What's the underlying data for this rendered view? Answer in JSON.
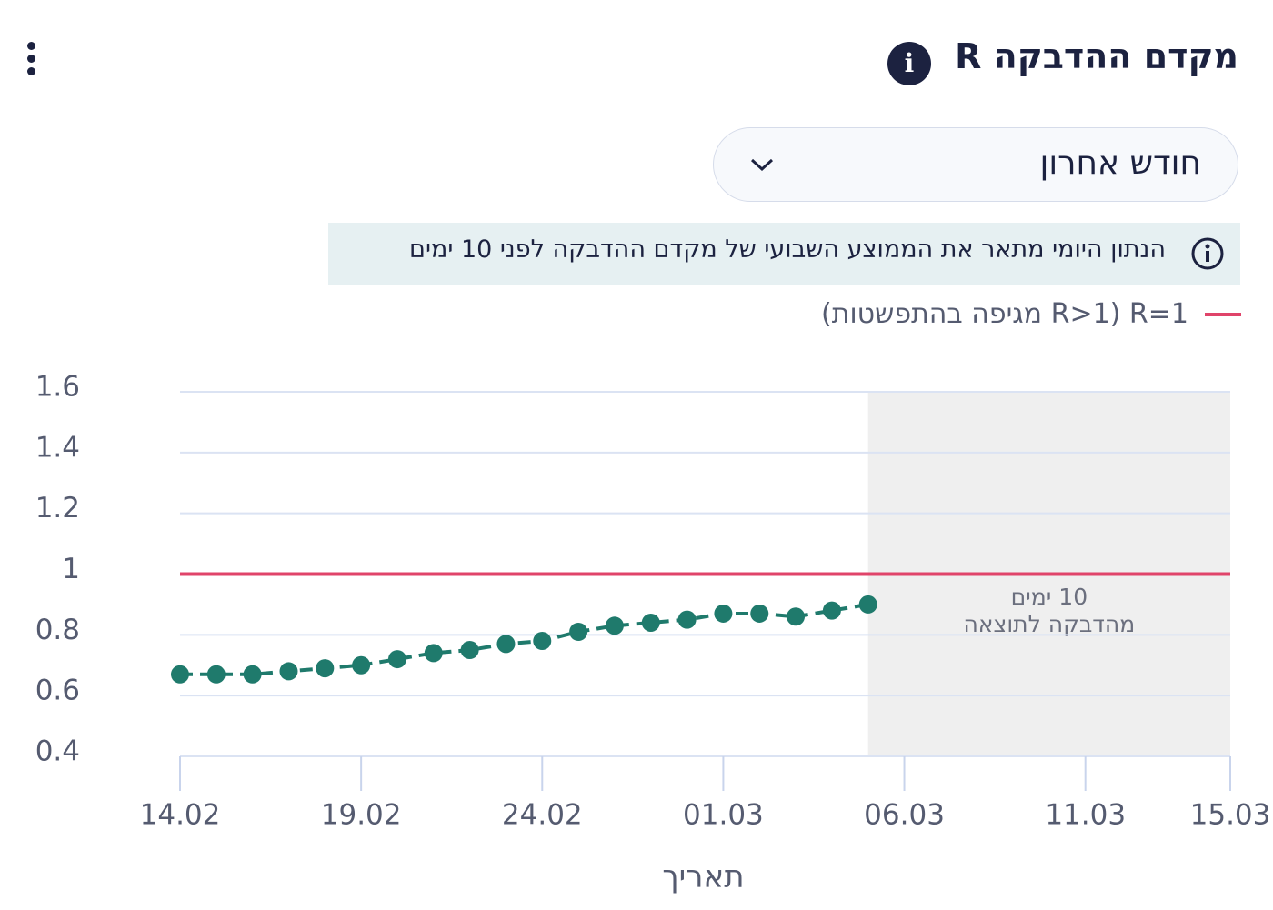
{
  "header": {
    "title": "מקדם ההדבקה R",
    "dropdown": "חודש אחרון",
    "note": "הנתון היומי מתאר את הממוצע השבועי של מקדם ההדבקה לפני 10 ימים"
  },
  "chart_data": {
    "type": "line",
    "x_label": "תאריך",
    "x": [
      "14.02",
      "15.02",
      "16.02",
      "17.02",
      "18.02",
      "19.02",
      "20.02",
      "21.02",
      "22.02",
      "23.02",
      "24.02",
      "25.02",
      "26.02",
      "27.02",
      "28.02",
      "01.03",
      "02.03",
      "03.03",
      "04.03",
      "05.03"
    ],
    "series": [
      {
        "name": "R",
        "color": "#1f7a6c",
        "values": [
          0.67,
          0.67,
          0.67,
          0.68,
          0.69,
          0.7,
          0.72,
          0.74,
          0.75,
          0.77,
          0.78,
          0.81,
          0.83,
          0.84,
          0.85,
          0.87,
          0.87,
          0.86,
          0.88,
          0.9
        ]
      }
    ],
    "xlim": [
      "14.02",
      "15.03"
    ],
    "xticks": [
      "14.02",
      "19.02",
      "24.02",
      "01.03",
      "06.03",
      "11.03",
      "15.03"
    ],
    "ylim": [
      0.4,
      1.6
    ],
    "yticks": [
      0.4,
      0.6,
      0.8,
      1,
      1.2,
      1.4,
      1.6
    ],
    "grid": true,
    "reference_line": {
      "value": 1,
      "color": "#e0446a",
      "legend": "R=1 (R>1 מגיפה בהתפשטות)"
    },
    "shaded_region": {
      "from": "05.03",
      "to": "15.03",
      "color": "#efefef",
      "label": [
        "10 ימים",
        "מהדבקה לתוצאה"
      ]
    }
  }
}
